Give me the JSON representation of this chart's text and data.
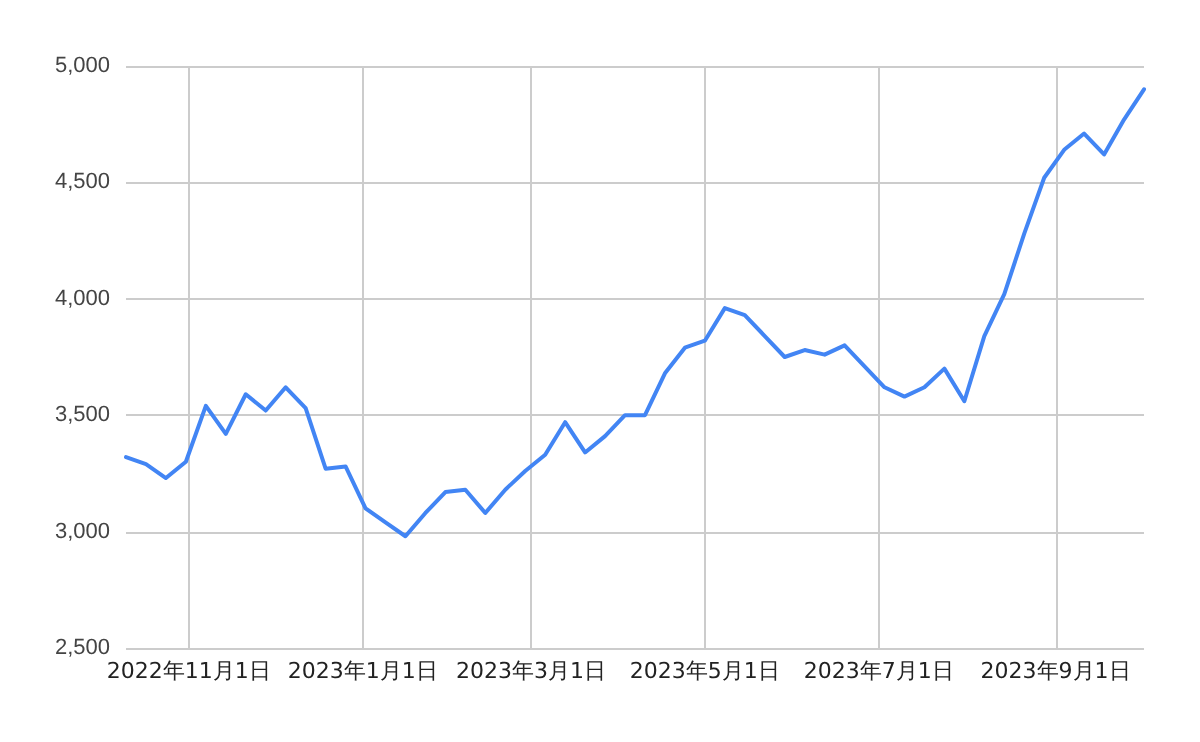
{
  "chart_data": {
    "type": "line",
    "x": [
      "2022-10-10",
      "2022-10-17",
      "2022-10-24",
      "2022-10-31",
      "2022-11-07",
      "2022-11-14",
      "2022-11-21",
      "2022-11-28",
      "2022-12-05",
      "2022-12-12",
      "2022-12-19",
      "2022-12-26",
      "2023-01-02",
      "2023-01-09",
      "2023-01-16",
      "2023-01-23",
      "2023-01-30",
      "2023-02-06",
      "2023-02-13",
      "2023-02-20",
      "2023-02-27",
      "2023-03-06",
      "2023-03-13",
      "2023-03-20",
      "2023-03-27",
      "2023-04-03",
      "2023-04-10",
      "2023-04-17",
      "2023-04-24",
      "2023-05-01",
      "2023-05-08",
      "2023-05-15",
      "2023-05-22",
      "2023-05-29",
      "2023-06-05",
      "2023-06-12",
      "2023-06-19",
      "2023-06-26",
      "2023-07-03",
      "2023-07-10",
      "2023-07-17",
      "2023-07-24",
      "2023-07-31",
      "2023-08-07",
      "2023-08-14",
      "2023-08-21",
      "2023-08-28",
      "2023-09-04",
      "2023-09-11",
      "2023-09-18",
      "2023-09-25",
      "2023-10-02"
    ],
    "series": [
      {
        "color": "#4285f4",
        "values": [
          3320,
          3290,
          3230,
          3300,
          3540,
          3420,
          3590,
          3520,
          3620,
          3530,
          3270,
          3280,
          3100,
          3040,
          2980,
          3080,
          3170,
          3180,
          3080,
          3180,
          3260,
          3330,
          3470,
          3340,
          3410,
          3500,
          3500,
          3680,
          3790,
          3820,
          3960,
          3930,
          3840,
          3750,
          3780,
          3760,
          3800,
          3710,
          3620,
          3580,
          3620,
          3700,
          3560,
          3840,
          4020,
          4280,
          4520,
          4640,
          4710,
          4620,
          4770,
          4900
        ]
      }
    ],
    "xlim": [
      "2022-10-10",
      "2023-10-02"
    ],
    "xticks": [
      {
        "value": "2022-11-01",
        "label": "2022年11月1日"
      },
      {
        "value": "2023-01-01",
        "label": "2023年1月1日"
      },
      {
        "value": "2023-03-01",
        "label": "2023年3月1日"
      },
      {
        "value": "2023-05-01",
        "label": "2023年5月1日"
      },
      {
        "value": "2023-07-01",
        "label": "2023年7月1日"
      },
      {
        "value": "2023-09-01",
        "label": "2023年9月1日"
      }
    ],
    "ylim": [
      2500,
      5000
    ],
    "yticks": [
      {
        "value": 2500,
        "label": "2,500"
      },
      {
        "value": 3000,
        "label": "3,000"
      },
      {
        "value": 3500,
        "label": "3,500"
      },
      {
        "value": 4000,
        "label": "4,000"
      },
      {
        "value": 4500,
        "label": "4,500"
      },
      {
        "value": 5000,
        "label": "5,000"
      }
    ],
    "grid": true,
    "marker": "none",
    "line_style": "solid"
  }
}
